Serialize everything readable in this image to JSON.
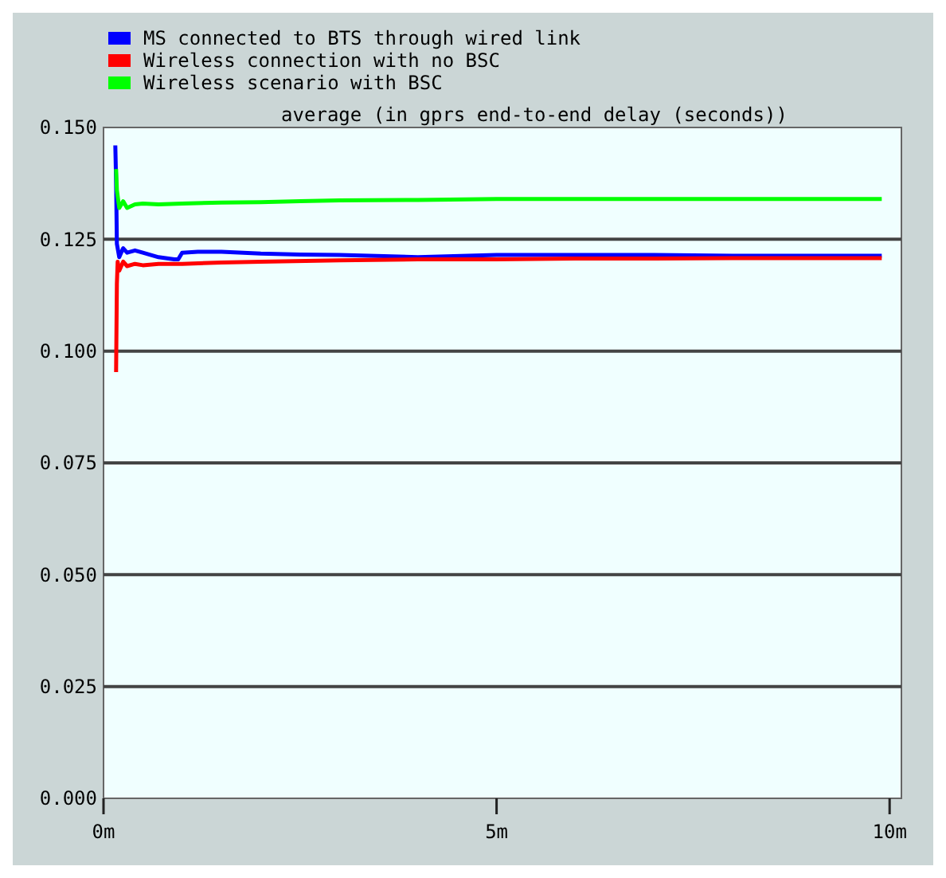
{
  "chart_data": {
    "type": "line",
    "title": "average (in gprs end-to-end delay (seconds))",
    "xlim": [
      0,
      10.15
    ],
    "xticks": [
      {
        "value": 0,
        "label": "0m"
      },
      {
        "value": 5,
        "label": "5m"
      },
      {
        "value": 10,
        "label": "10m"
      }
    ],
    "ylim": [
      0,
      0.15
    ],
    "yticks": [
      {
        "value": 0,
        "label": "0.000"
      },
      {
        "value": 0.025,
        "label": "0.025"
      },
      {
        "value": 0.05,
        "label": "0.050"
      },
      {
        "value": 0.075,
        "label": "0.075"
      },
      {
        "value": 0.1,
        "label": "0.100"
      },
      {
        "value": 0.125,
        "label": "0.125"
      },
      {
        "value": 0.15,
        "label": "0.150"
      }
    ],
    "grid": "y",
    "legend": "top left",
    "line_style": "solid",
    "marker": "none",
    "series": [
      {
        "name": "MS connected to BTS through wired link",
        "color": "#0000ff",
        "x": [
          0.15,
          0.16,
          0.17,
          0.2,
          0.25,
          0.3,
          0.4,
          0.5,
          0.7,
          0.9,
          0.95,
          1.0,
          1.2,
          1.5,
          2.0,
          2.5,
          3.0,
          4.0,
          5.0,
          6.0,
          7.0,
          8.0,
          9.0,
          9.9
        ],
        "values": [
          0.146,
          0.138,
          0.124,
          0.121,
          0.123,
          0.122,
          0.1225,
          0.122,
          0.121,
          0.1205,
          0.1205,
          0.122,
          0.1222,
          0.1222,
          0.1218,
          0.1216,
          0.1215,
          0.121,
          0.1215,
          0.1215,
          0.1215,
          0.1213,
          0.1213,
          0.1213
        ]
      },
      {
        "name": "Wireless connection with no BSC",
        "color": "#ff0000",
        "x": [
          0.16,
          0.17,
          0.18,
          0.2,
          0.25,
          0.3,
          0.4,
          0.5,
          0.7,
          1.0,
          1.5,
          2.0,
          3.0,
          4.0,
          5.0,
          6.0,
          7.0,
          8.0,
          9.0,
          9.9
        ],
        "values": [
          0.0953,
          0.115,
          0.12,
          0.118,
          0.12,
          0.119,
          0.1195,
          0.1192,
          0.1195,
          0.1195,
          0.1198,
          0.12,
          0.1203,
          0.1205,
          0.1205,
          0.1207,
          0.1207,
          0.1208,
          0.1208,
          0.1208
        ]
      },
      {
        "name": "Wireless scenario with BSC",
        "color": "#00ff00",
        "x": [
          0.16,
          0.17,
          0.2,
          0.25,
          0.3,
          0.4,
          0.5,
          0.7,
          1.0,
          1.5,
          2.0,
          2.5,
          3.0,
          4.0,
          5.0,
          6.0,
          7.0,
          8.0,
          9.0,
          9.9
        ],
        "values": [
          0.1407,
          0.136,
          0.132,
          0.1335,
          0.132,
          0.1328,
          0.133,
          0.1328,
          0.133,
          0.1332,
          0.1333,
          0.1335,
          0.1337,
          0.1338,
          0.134,
          0.134,
          0.134,
          0.134,
          0.134,
          0.134
        ]
      }
    ]
  }
}
